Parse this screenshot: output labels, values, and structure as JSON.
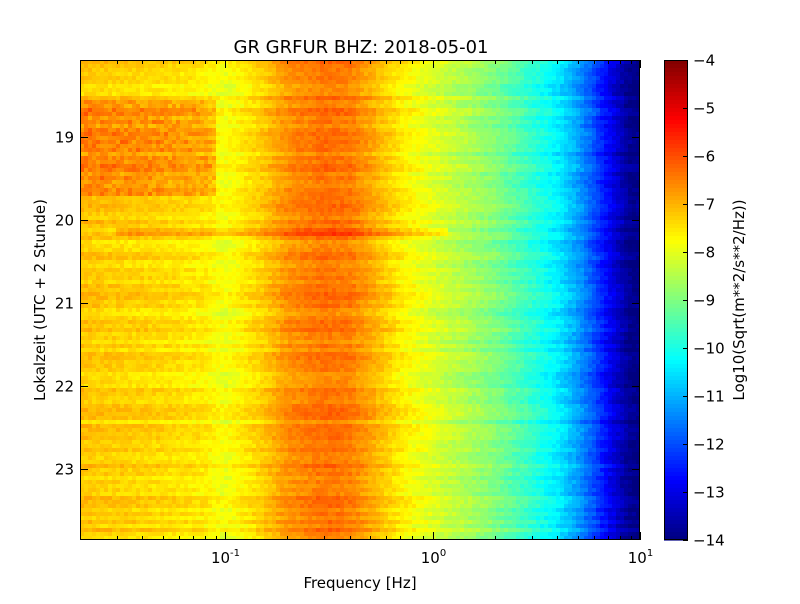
{
  "chart_data": {
    "type": "heatmap",
    "title": "GR GRFUR BHZ: 2018-05-01",
    "xlabel": "Frequency [Hz]",
    "ylabel": "Lokalzeit (UTC + 2 Stunde)",
    "x_scale": "log",
    "xlim": [
      0.02,
      10
    ],
    "x_ticks": [
      {
        "value": 0.1,
        "base": "10",
        "exp": "-1"
      },
      {
        "value": 1,
        "base": "10",
        "exp": "0"
      },
      {
        "value": 10,
        "base": "10",
        "exp": "1"
      }
    ],
    "ylim": [
      18.07,
      23.85
    ],
    "y_inverted": true,
    "y_ticks": [
      19,
      20,
      21,
      22,
      23
    ],
    "y_tick_labels": [
      "19",
      "20",
      "21",
      "22",
      "23"
    ],
    "colorbar": {
      "label": "Log10(Sqrt(m**2/s**2/Hz))",
      "colormap": "jet",
      "range": [
        -14,
        -4
      ],
      "ticks": [
        -4,
        -5,
        -6,
        -7,
        -8,
        -9,
        -10,
        -11,
        -12,
        -13,
        -14
      ],
      "tick_labels": [
        "−4",
        "−5",
        "−6",
        "−7",
        "−8",
        "−9",
        "−10",
        "−11",
        "−12",
        "−13",
        "−14"
      ]
    },
    "spectrum_profile": {
      "frequency": [
        0.02,
        0.05,
        0.08,
        0.1,
        0.15,
        0.2,
        0.3,
        0.4,
        0.5,
        0.7,
        1.0,
        1.5,
        2.0,
        3.0,
        4.0,
        5.0,
        6.0,
        7.0,
        8.0,
        9.0,
        10.0
      ],
      "value": [
        -7.2,
        -7.4,
        -7.6,
        -7.9,
        -7.3,
        -6.7,
        -6.4,
        -6.5,
        -6.9,
        -7.6,
        -8.1,
        -8.6,
        -9.0,
        -9.8,
        -10.4,
        -11.2,
        -12.0,
        -12.8,
        -13.4,
        -13.9,
        -14.0
      ]
    },
    "features": [
      {
        "type": "horizontal_band",
        "time": 20.15,
        "delta": 0.6
      },
      {
        "type": "elevated_block",
        "f_range": [
          0.02,
          0.09
        ],
        "t_range": [
          18.55,
          19.7
        ],
        "delta": 0.8
      }
    ]
  }
}
